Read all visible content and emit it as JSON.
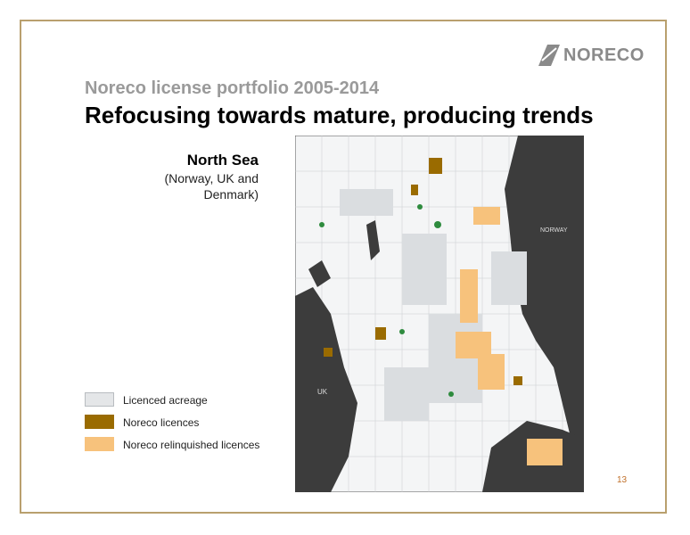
{
  "logo": {
    "text": "NORECO"
  },
  "header": {
    "subtitle": "Noreco license portfolio 2005-2014",
    "title": "Refocusing towards mature, producing trends"
  },
  "region": {
    "name": "North Sea",
    "lines": [
      "(Norway, UK and",
      "Denmark)"
    ]
  },
  "map": {
    "labels": [
      "NORWAY",
      "UK"
    ]
  },
  "legend": {
    "items": [
      "Licenced acreage",
      "Noreco licences",
      "Noreco relinquished licences"
    ]
  },
  "page_number": "13"
}
